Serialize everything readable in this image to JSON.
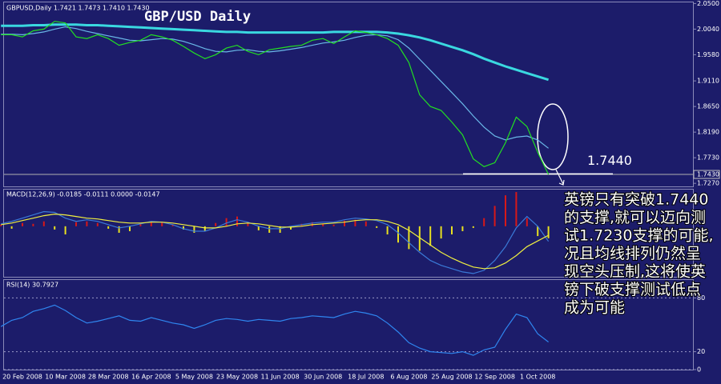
{
  "chart_data": [
    {
      "type": "line",
      "header": "GBPUSD,Daily  1.7421 1.7473 1.7410 1.7430",
      "title": "GBP/USD Daily",
      "ylim": [
        1.7215,
        2.052
      ],
      "yticks": [
        {
          "value": 2.05,
          "label": "2.0500"
        },
        {
          "value": 2.004,
          "label": "2.0040"
        },
        {
          "value": 1.958,
          "label": "1.9580"
        },
        {
          "value": 1.911,
          "label": "1.9110"
        },
        {
          "value": 1.865,
          "label": "1.8650"
        },
        {
          "value": 1.819,
          "label": "1.8190"
        },
        {
          "value": 1.773,
          "label": "1.7730"
        },
        {
          "value": 1.727,
          "label": "1.7270"
        }
      ],
      "last_price": {
        "value": 1.743,
        "label": "1.7430"
      },
      "level": {
        "value": 1.744,
        "label": "1.7440"
      },
      "series": [
        {
          "color": "#3ad8e0",
          "values": [
            2.01,
            2.01,
            2.01,
            2.011,
            2.011,
            2.012,
            2.012,
            2.012,
            2.011,
            2.011,
            2.01,
            2.009,
            2.008,
            2.007,
            2.006,
            2.005,
            2.004,
            2.003,
            2.002,
            2.001,
            2.0,
            1.999,
            1.999,
            1.998,
            1.998,
            1.998,
            1.998,
            1.998,
            1.998,
            1.998,
            1.998,
            1.999,
            1.999,
            1.999,
            1.999,
            1.999,
            1.998,
            1.996,
            1.993,
            1.989,
            1.984,
            1.978,
            1.972,
            1.966,
            1.959,
            1.951,
            1.944,
            1.937,
            1.931,
            1.925,
            1.919,
            1.913
          ]
        },
        {
          "color": "#6ab8e8",
          "values": [
            1.995,
            1.995,
            1.994,
            1.996,
            1.999,
            2.004,
            2.008,
            2.005,
            2.0,
            1.996,
            1.992,
            1.988,
            1.984,
            1.983,
            1.985,
            1.987,
            1.986,
            1.982,
            1.976,
            1.969,
            1.964,
            1.963,
            1.966,
            1.967,
            1.964,
            1.963,
            1.965,
            1.968,
            1.971,
            1.975,
            1.979,
            1.981,
            1.984,
            1.989,
            1.993,
            1.994,
            1.992,
            1.985,
            1.97,
            1.95,
            1.93,
            1.91,
            1.89,
            1.87,
            1.848,
            1.828,
            1.812,
            1.805,
            1.81,
            1.812,
            1.805,
            1.79
          ]
        },
        {
          "color": "#22e022",
          "values": [
            1.994,
            1.994,
            1.99,
            2.001,
            2.004,
            2.018,
            2.015,
            1.99,
            1.987,
            1.994,
            1.987,
            1.975,
            1.98,
            1.984,
            1.994,
            1.99,
            1.984,
            1.973,
            1.961,
            1.951,
            1.958,
            1.97,
            1.975,
            1.964,
            1.958,
            1.967,
            1.97,
            1.973,
            1.975,
            1.984,
            1.987,
            1.978,
            1.99,
            2.001,
            1.998,
            1.994,
            1.987,
            1.975,
            1.944,
            1.886,
            1.865,
            1.858,
            1.837,
            1.814,
            1.771,
            1.757,
            1.764,
            1.8,
            1.846,
            1.829,
            1.783,
            1.743
          ]
        }
      ],
      "annotation": [
        "英镑只有突破1.7440",
        "的支撑,就可以迈向测",
        "试1.7230支撑的可能,",
        "况且均线排列仍然呈",
        "现空头压制,这将使英",
        "镑下破支撑测试低点",
        "成为可能"
      ]
    },
    {
      "type": "macd",
      "header": "MACD(12,26,9) -0.0185 -0.0111 0.0000 -0.0147",
      "ylim": [
        -0.062,
        0.045
      ],
      "histogram": {
        "up_color": "#d81818",
        "down_color": "#e8e020",
        "values": [
          0.002,
          -0.003,
          0.004,
          0.003,
          0.006,
          -0.004,
          -0.01,
          0.005,
          0.006,
          0.004,
          -0.003,
          -0.008,
          -0.006,
          0.003,
          0.006,
          0.005,
          0.002,
          -0.004,
          -0.008,
          -0.006,
          0.004,
          0.01,
          0.012,
          0.005,
          -0.005,
          -0.008,
          -0.008,
          -0.004,
          0.003,
          0.005,
          0.003,
          0.002,
          0.007,
          0.008,
          0.006,
          -0.002,
          -0.01,
          -0.02,
          -0.028,
          -0.03,
          -0.024,
          -0.015,
          -0.01,
          -0.006,
          -0.002,
          0.01,
          0.025,
          0.038,
          0.042,
          0.01,
          -0.012,
          -0.0147
        ]
      },
      "series": [
        {
          "color": "#3a7ad8",
          "values": [
            0.003,
            0.006,
            0.01,
            0.014,
            0.018,
            0.017,
            0.01,
            0.006,
            0.008,
            0.006,
            0.002,
            -0.002,
            0,
            0.003,
            0.006,
            0.005,
            0.002,
            -0.003,
            -0.006,
            -0.006,
            -0.002,
            0.004,
            0.008,
            0.005,
            0,
            -0.003,
            -0.003,
            0,
            0.002,
            0.004,
            0.005,
            0.005,
            0.008,
            0.01,
            0.009,
            0.007,
            0.002,
            -0.008,
            -0.02,
            -0.032,
            -0.042,
            -0.048,
            -0.052,
            -0.056,
            -0.058,
            -0.054,
            -0.042,
            -0.025,
            -0.002,
            0.012,
            0,
            -0.0185
          ]
        },
        {
          "color": "#f0f040",
          "values": [
            0.002,
            0.004,
            0.007,
            0.01,
            0.013,
            0.015,
            0.014,
            0.012,
            0.01,
            0.009,
            0.007,
            0.005,
            0.004,
            0.004,
            0.005,
            0.005,
            0.004,
            0.002,
            0,
            -0.002,
            -0.002,
            0,
            0.003,
            0.004,
            0.003,
            0.001,
            -0.001,
            -0.001,
            0,
            0.002,
            0.003,
            0.004,
            0.005,
            0.007,
            0.008,
            0.008,
            0.006,
            0.002,
            -0.005,
            -0.014,
            -0.023,
            -0.032,
            -0.039,
            -0.045,
            -0.05,
            -0.052,
            -0.051,
            -0.045,
            -0.036,
            -0.025,
            -0.018,
            -0.0111
          ]
        }
      ]
    },
    {
      "type": "line",
      "header": "RSI(14) 30.7927",
      "ylim": [
        0,
        100
      ],
      "yticks": [
        80,
        20,
        0
      ],
      "grid": true,
      "categories": [
        null,
        null,
        "20 Feb 2008",
        null,
        null,
        null,
        "10 Mar 2008",
        null,
        null,
        null,
        "28 Mar 2008",
        null,
        null,
        null,
        "16 Apr 2008",
        null,
        null,
        null,
        "5 May 2008",
        null,
        null,
        null,
        "23 May 2008",
        null,
        null,
        null,
        "11 Jun 2008",
        null,
        null,
        null,
        "30 Jun 2008",
        null,
        null,
        null,
        "18 Jul 2008",
        null,
        null,
        null,
        "6 Aug 2008",
        null,
        null,
        null,
        "25 Aug 2008",
        null,
        null,
        null,
        "12 Sep 2008",
        null,
        null,
        null,
        "1 Oct 2008",
        null
      ],
      "series": [
        {
          "color": "#2f86f0",
          "values": [
            48,
            55,
            58,
            65,
            68,
            72,
            66,
            58,
            52,
            54,
            57,
            60,
            55,
            54,
            58,
            55,
            52,
            50,
            46,
            50,
            55,
            57,
            56,
            54,
            56,
            55,
            54,
            57,
            58,
            60,
            59,
            58,
            62,
            65,
            63,
            60,
            52,
            42,
            30,
            24,
            20,
            19,
            18,
            20,
            16,
            22,
            25,
            45,
            62,
            58,
            40,
            30.7927
          ]
        }
      ]
    }
  ]
}
